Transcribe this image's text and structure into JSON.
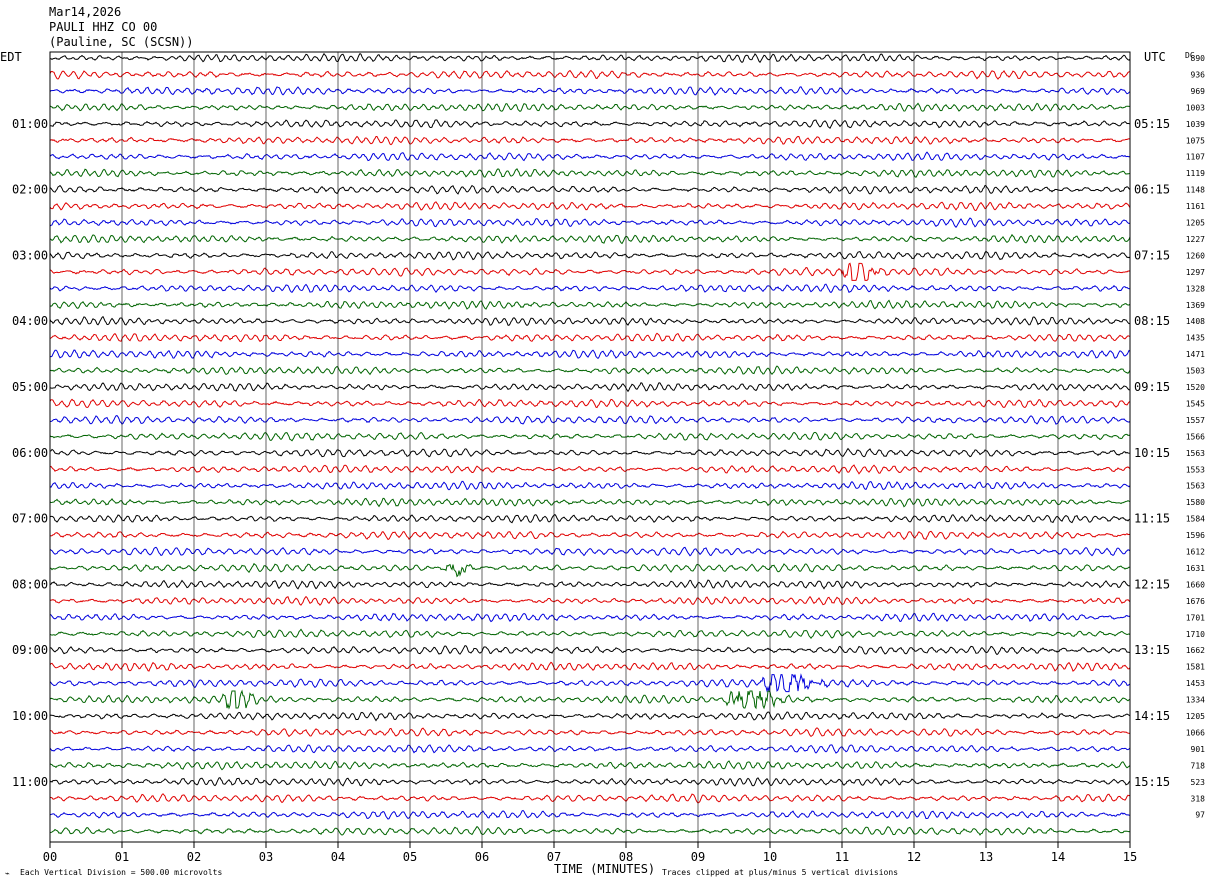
{
  "header": {
    "date": "Mar14,2026",
    "station": "PAULI HHZ CO 00",
    "location": "(Pauline, SC (SCSN))"
  },
  "left_tz": "EDT",
  "right_tz": "UTC",
  "dc_label": "DC",
  "footer": {
    "scale_note": "Each Vertical Division =  500.00 microvolts",
    "axis_title": "TIME (MINUTES)",
    "clip_note": "Traces clipped at plus/minus 5 vertical divisions"
  },
  "colors": {
    "trace_cycle": [
      "#000000",
      "#e00000",
      "#0000dd",
      "#006400"
    ],
    "grid": "#000000"
  },
  "chart_data": {
    "type": "line",
    "title": "PAULI HHZ CO 00",
    "xlabel": "TIME (MINUTES)",
    "xlim": [
      0,
      15
    ],
    "x_ticks": [
      "00",
      "01",
      "02",
      "03",
      "04",
      "05",
      "06",
      "07",
      "08",
      "09",
      "10",
      "11",
      "12",
      "13",
      "14",
      "15"
    ],
    "minutes_per_line": 15,
    "line_count": 48,
    "left_hour_labels": [
      "01:00",
      "02:00",
      "03:00",
      "04:00",
      "05:00",
      "06:00",
      "07:00",
      "08:00",
      "09:00",
      "10:00",
      "11:00"
    ],
    "right_hour_labels": [
      "05:15",
      "06:15",
      "07:15",
      "08:15",
      "09:15",
      "10:15",
      "11:15",
      "12:15",
      "13:15",
      "14:15",
      "15:15"
    ],
    "dc_offsets": [
      890,
      936,
      969,
      1003,
      1039,
      1075,
      1107,
      1119,
      1148,
      1161,
      1205,
      1227,
      1260,
      1297,
      1328,
      1369,
      1408,
      1435,
      1471,
      1503,
      1520,
      1545,
      1557,
      1566,
      1563,
      1553,
      1563,
      1580,
      1584,
      1596,
      1612,
      1631,
      1660,
      1676,
      1701,
      1710,
      1662,
      1581,
      1453,
      1334,
      1205,
      1066,
      901,
      718,
      523,
      318,
      97
    ],
    "events": [
      {
        "line": 13,
        "start_min": 11.0,
        "end_min": 11.6
      },
      {
        "line": 31,
        "start_min": 5.5,
        "end_min": 5.9
      },
      {
        "line": 38,
        "start_min": 9.9,
        "end_min": 10.8
      },
      {
        "line": 39,
        "start_min": 2.4,
        "end_min": 2.9
      },
      {
        "line": 39,
        "start_min": 9.4,
        "end_min": 10.3
      }
    ]
  }
}
